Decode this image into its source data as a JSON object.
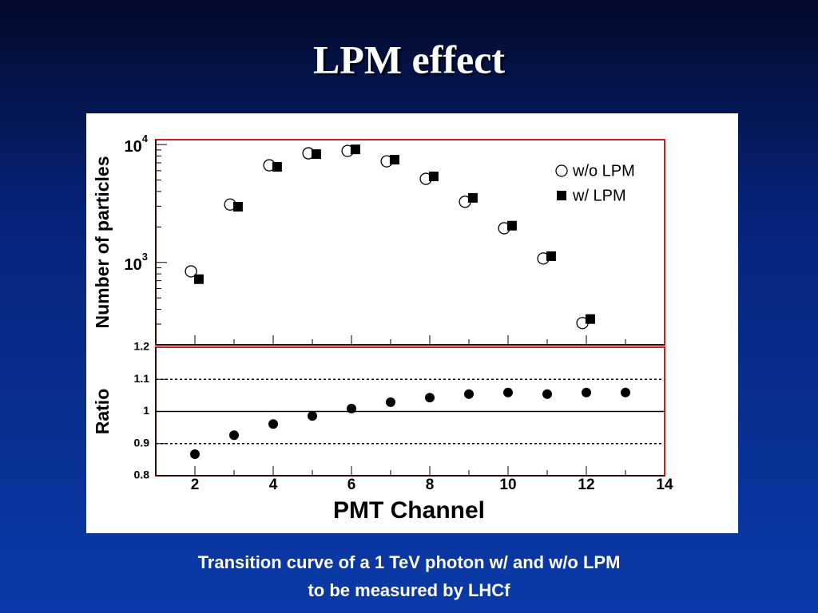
{
  "slide": {
    "title": "LPM effect",
    "caption": [
      "Transition curve of a 1 TeV photon w/ and w/o LPM",
      "to be measured by LHCf"
    ]
  },
  "chart_data": [
    {
      "type": "scatter",
      "y_label": "Number of particles",
      "log_y": true,
      "xlim": [
        1,
        14
      ],
      "ylim": [
        200,
        11000
      ],
      "yticks": [
        {
          "value": 1000,
          "label": "10",
          "exponent": "3"
        },
        {
          "value": 10000,
          "label": "10",
          "exponent": "4"
        }
      ],
      "minor_yticks": [
        300,
        400,
        500,
        600,
        700,
        800,
        900,
        2000,
        3000,
        4000,
        5000,
        6000,
        7000,
        8000,
        9000
      ],
      "xticks": [
        2,
        4,
        6,
        8,
        10,
        12,
        14
      ],
      "minor_xticks": [
        3,
        5,
        7,
        9,
        11,
        13
      ],
      "legend": "upper right",
      "series": [
        {
          "name": "w/o LPM",
          "marker": "open-circle",
          "color": "#000000",
          "x": [
            1.9,
            2.9,
            3.9,
            4.9,
            5.9,
            6.9,
            7.9,
            8.9,
            9.9,
            10.9,
            11.9
          ],
          "values": [
            840,
            3100,
            6670,
            8430,
            8830,
            7210,
            5120,
            3270,
            1950,
            1080,
            306
          ]
        },
        {
          "name": "w/ LPM",
          "marker": "filled-square",
          "color": "#000000",
          "x": [
            2.1,
            3.1,
            4.1,
            5.1,
            6.1,
            7.1,
            8.1,
            9.1,
            10.1,
            11.1,
            12.1
          ],
          "values": [
            721,
            2970,
            6470,
            8300,
            9100,
            7440,
            5370,
            3530,
            2050,
            1130,
            331
          ]
        }
      ]
    },
    {
      "type": "scatter",
      "y_label": "Ratio",
      "x_label": "PMT Channel",
      "xlim": [
        1,
        14
      ],
      "ylim": [
        0.8,
        1.2
      ],
      "yticks": [
        0.8,
        0.9,
        1,
        1.1,
        1.2
      ],
      "xticks": [
        2,
        4,
        6,
        8,
        10,
        12,
        14
      ],
      "minor_xticks": [
        3,
        5,
        7,
        9,
        11,
        13
      ],
      "reference_lines": [
        {
          "value": 0.9,
          "style": "dotted"
        },
        {
          "value": 1,
          "style": "solid"
        },
        {
          "value": 1.1,
          "style": "dotted"
        }
      ],
      "series": [
        {
          "marker": "filled-circle",
          "color": "#000000",
          "x": [
            2,
            3,
            4,
            5,
            6,
            7,
            8,
            9,
            10,
            11,
            12,
            13
          ],
          "values": [
            0.867,
            0.926,
            0.961,
            0.986,
            1.009,
            1.029,
            1.043,
            1.054,
            1.059,
            1.054,
            1.059,
            1.059
          ]
        }
      ]
    }
  ]
}
